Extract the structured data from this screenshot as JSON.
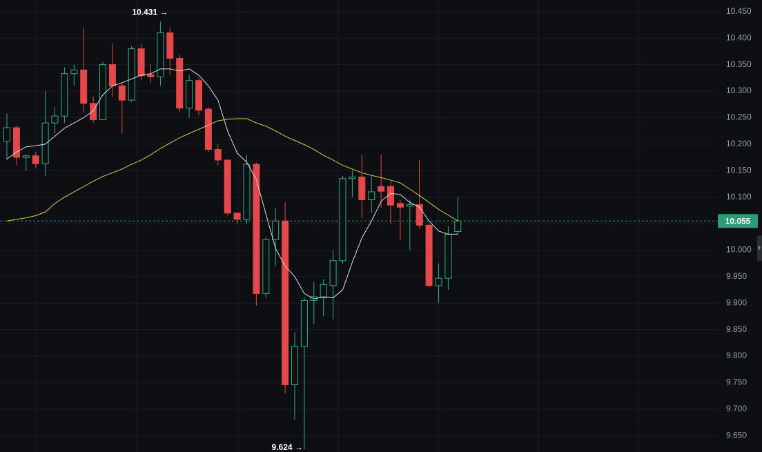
{
  "chart_data": {
    "type": "candlestick",
    "open": [
      10.205,
      10.231,
      10.175,
      10.178,
      10.163,
      10.24,
      10.253,
      10.333,
      10.34,
      10.277,
      10.246,
      10.35,
      10.31,
      10.283,
      10.38,
      10.331,
      10.327,
      10.41,
      10.362,
      10.268,
      10.32,
      10.266,
      10.19,
      10.17,
      10.07,
      10.058,
      10.162,
      9.918,
      10.02,
      10.055,
      9.746,
      9.818,
      9.905,
      9.91,
      9.933,
      9.98,
      10.135,
      10.138,
      10.095,
      10.12,
      10.12,
      10.088,
      10.083,
      10.086,
      10.047,
      9.933,
      9.947,
      10.035
    ],
    "high": [
      10.257,
      10.235,
      10.18,
      10.185,
      10.3,
      10.27,
      10.345,
      10.35,
      10.42,
      10.29,
      10.355,
      10.39,
      10.315,
      10.385,
      10.39,
      10.35,
      10.431,
      10.42,
      10.37,
      10.33,
      10.325,
      10.27,
      10.2,
      10.17,
      10.07,
      10.18,
      10.165,
      10.025,
      10.08,
      10.09,
      9.845,
      9.91,
      9.94,
      9.945,
      10.0,
      10.14,
      10.15,
      10.18,
      10.14,
      10.18,
      10.13,
      10.095,
      10.095,
      10.17,
      10.05,
      9.975,
      10.045,
      10.1
    ],
    "low": [
      10.17,
      10.16,
      10.15,
      10.155,
      10.14,
      10.22,
      10.24,
      10.31,
      10.26,
      10.24,
      10.245,
      10.29,
      10.22,
      10.28,
      10.32,
      10.315,
      10.31,
      10.33,
      10.26,
      10.25,
      10.255,
      10.185,
      10.16,
      10.065,
      10.05,
      10.05,
      9.895,
      9.91,
      9.97,
      9.73,
      9.68,
      9.624,
      9.86,
      9.875,
      9.87,
      9.975,
      10.1,
      10.06,
      10.07,
      10.08,
      10.05,
      10.02,
      10.0,
      10.04,
      9.93,
      9.9,
      9.925,
      10.03
    ],
    "close": [
      10.231,
      10.175,
      10.178,
      10.163,
      10.24,
      10.253,
      10.333,
      10.34,
      10.277,
      10.246,
      10.35,
      10.31,
      10.283,
      10.38,
      10.329,
      10.327,
      10.41,
      10.362,
      10.268,
      10.32,
      10.264,
      10.19,
      10.17,
      10.07,
      10.058,
      10.162,
      9.918,
      10.02,
      10.055,
      9.746,
      9.818,
      9.905,
      9.912,
      9.935,
      9.98,
      10.135,
      10.138,
      10.095,
      10.11,
      10.111,
      10.085,
      10.081,
      10.086,
      10.047,
      9.933,
      9.947,
      10.03,
      10.055
    ],
    "up_color": "#2fae85",
    "down_color": "#e5474b",
    "series": [
      {
        "color": "#d9dde3",
        "values": [
          10.172,
          10.185,
          10.195,
          10.197,
          10.2,
          10.215,
          10.23,
          10.24,
          10.25,
          10.263,
          10.293,
          10.31,
          10.316,
          10.323,
          10.33,
          10.333,
          10.342,
          10.342,
          10.338,
          10.342,
          10.33,
          10.31,
          10.283,
          10.225,
          10.183,
          10.166,
          10.133,
          10.068,
          10.003,
          9.97,
          9.95,
          9.918,
          9.908,
          9.912,
          9.91,
          9.925,
          9.977,
          10.023,
          10.055,
          10.092,
          10.107,
          10.105,
          10.09,
          10.081,
          10.055,
          10.036,
          10.03,
          10.03
        ]
      },
      {
        "color": "#d8cf4a",
        "values": [
          10.055,
          10.058,
          10.061,
          10.065,
          10.072,
          10.088,
          10.1,
          10.11,
          10.12,
          10.13,
          10.139,
          10.146,
          10.153,
          10.162,
          10.17,
          10.18,
          10.192,
          10.202,
          10.212,
          10.22,
          10.228,
          10.236,
          10.244,
          10.247,
          10.248,
          10.248,
          10.24,
          10.234,
          10.225,
          10.215,
          10.207,
          10.199,
          10.19,
          10.179,
          10.17,
          10.16,
          10.153,
          10.146,
          10.141,
          10.137,
          10.132,
          10.127,
          10.115,
          10.103,
          10.09,
          10.077,
          10.066,
          10.055
        ]
      }
    ],
    "last_price": 10.055,
    "last_price_color": "#2a9d77",
    "annotations": [
      {
        "value": 10.431,
        "label": "10.431 →"
      },
      {
        "value": 9.624,
        "label": "9.624 →"
      }
    ],
    "ylim": [
      9.619,
      10.472
    ],
    "yticks": [
      {
        "value": 10.45,
        "label": "10.450"
      },
      {
        "value": 10.4,
        "label": "10.400"
      },
      {
        "value": 10.35,
        "label": "10.350"
      },
      {
        "value": 10.3,
        "label": "10.300"
      },
      {
        "value": 10.25,
        "label": "10.250"
      },
      {
        "value": 10.2,
        "label": "10.200"
      },
      {
        "value": 10.15,
        "label": "10.150"
      },
      {
        "value": 10.1,
        "label": "10.100"
      },
      {
        "value": 10.05,
        "label": "10.050"
      },
      {
        "value": 10.0,
        "label": "10.000"
      },
      {
        "value": 9.95,
        "label": "9.950"
      },
      {
        "value": 9.9,
        "label": "9.900"
      },
      {
        "value": 9.85,
        "label": "9.850"
      },
      {
        "value": 9.8,
        "label": "9.800"
      },
      {
        "value": 9.75,
        "label": "9.750"
      },
      {
        "value": 9.7,
        "label": "9.700"
      },
      {
        "value": 9.65,
        "label": "9.650"
      }
    ],
    "grid": true
  }
}
